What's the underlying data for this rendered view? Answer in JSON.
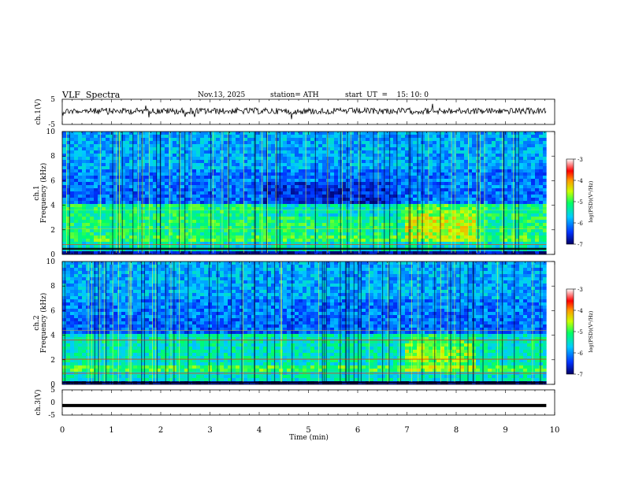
{
  "header": {
    "title": "VLF  Spectra",
    "date": "Nov.13, 2025",
    "station": "station= ATH",
    "start_ut": "start  UT  =    15: 10: 0"
  },
  "chart_data": [
    {
      "panel": "ch1-waveform",
      "type": "line",
      "ylabel": "ch.1(V)",
      "ylim": [
        -5,
        5
      ],
      "yticks": [
        "5",
        "-5"
      ],
      "xlim": [
        0,
        10
      ],
      "description_level": 0.7,
      "record_end_min": 9.83
    },
    {
      "panel": "ch1-spectrogram",
      "type": "heatmap",
      "ylabel_top": "ch.1",
      "ylabel": "Frequency  (kHz)",
      "ylim": [
        0,
        10
      ],
      "yticks": [
        "0",
        "2",
        "4",
        "6",
        "8",
        "10"
      ],
      "xlim": [
        0,
        10
      ],
      "colorbar": {
        "label": "log(PSD)(V²/Hz)",
        "range": [
          -7,
          -3
        ],
        "ticks": [
          "-3",
          "-4",
          "-5",
          "-6",
          "-7"
        ],
        "colors": [
          "#000066",
          "#0033ff",
          "#00ccff",
          "#00ff66",
          "#ccff00",
          "#ff9900",
          "#ff0000",
          "#ffffff"
        ]
      }
    },
    {
      "panel": "ch2-spectrogram",
      "type": "heatmap",
      "ylabel_top": "ch.2",
      "ylabel": "Frequency  (kHz)",
      "ylim": [
        0,
        10
      ],
      "yticks": [
        "0",
        "2",
        "4",
        "6",
        "8",
        "10"
      ],
      "xlim": [
        0,
        10
      ],
      "colorbar": {
        "label": "log(PSD)(V²/Hz)",
        "range": [
          -7,
          -3
        ],
        "ticks": [
          "-3",
          "-4",
          "-5",
          "-6",
          "-7"
        ]
      }
    },
    {
      "panel": "ch3-waveform",
      "type": "line",
      "ylabel": "ch.3(V)",
      "ylim": [
        -5,
        5
      ],
      "yticks": [
        "5",
        "0",
        "-5"
      ],
      "xlim": [
        0,
        10
      ],
      "level": -1.2
    }
  ],
  "xaxis": {
    "label": "Time  (min)",
    "ticks": [
      "0",
      "1",
      "2",
      "3",
      "4",
      "5",
      "6",
      "7",
      "8",
      "9",
      "10"
    ]
  }
}
